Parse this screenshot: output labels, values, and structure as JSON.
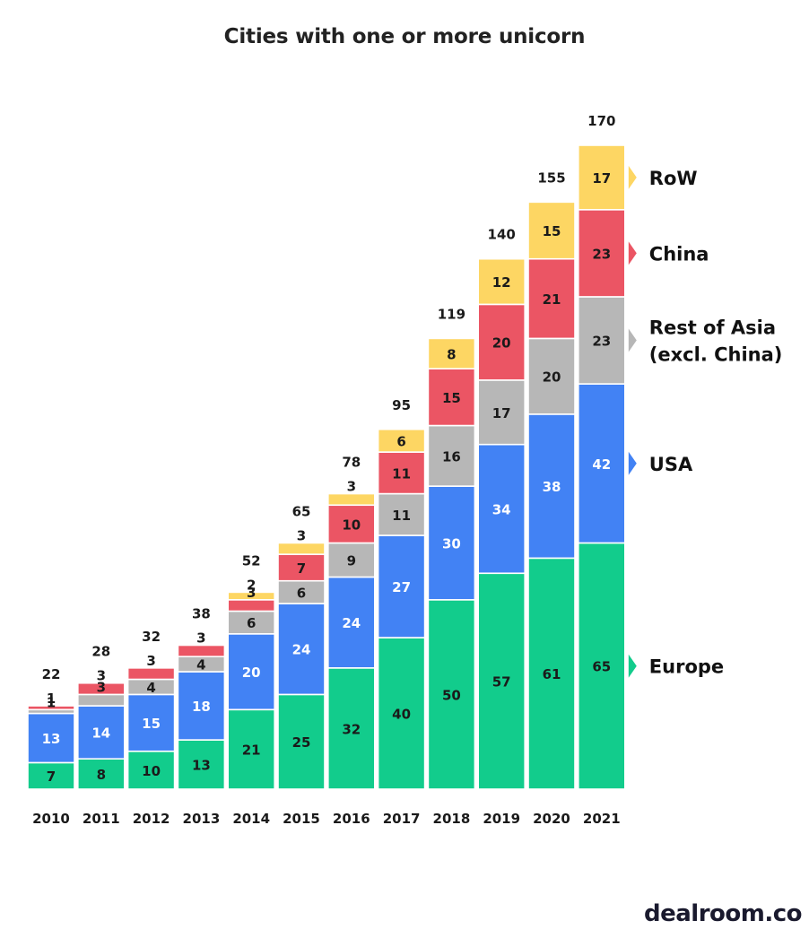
{
  "title": "Cities with one or more unicorn",
  "brand": "dealroom.co",
  "chart_data": {
    "type": "bar",
    "stacked": true,
    "title": "Cities with one or more unicorn",
    "categories": [
      "2010",
      "2011",
      "2012",
      "2013",
      "2014",
      "2015",
      "2016",
      "2017",
      "2018",
      "2019",
      "2020",
      "2021"
    ],
    "totals": [
      22,
      28,
      32,
      38,
      52,
      65,
      78,
      95,
      119,
      140,
      155,
      170
    ],
    "series": [
      {
        "name": "Europe",
        "color": "#12CC8C",
        "label_color": "#1a1a1a",
        "values": [
          7,
          8,
          10,
          13,
          21,
          25,
          32,
          40,
          50,
          57,
          61,
          65
        ]
      },
      {
        "name": "USA",
        "color": "#4282F4",
        "label_color": "#ffffff",
        "values": [
          13,
          14,
          15,
          18,
          20,
          24,
          24,
          27,
          30,
          34,
          38,
          42
        ]
      },
      {
        "name": "Rest of Asia\n(excl. China)",
        "color": "#B7B7B7",
        "label_color": "#1a1a1a",
        "values": [
          1,
          3,
          4,
          4,
          6,
          6,
          9,
          11,
          16,
          17,
          20,
          23
        ]
      },
      {
        "name": "China",
        "color": "#EB5564",
        "label_color": "#1a1a1a",
        "values": [
          1,
          3,
          3,
          3,
          3,
          7,
          10,
          11,
          15,
          20,
          21,
          23
        ]
      },
      {
        "name": "RoW",
        "color": "#FDD663",
        "label_color": "#1a1a1a",
        "values": [
          0,
          0,
          0,
          0,
          2,
          3,
          3,
          6,
          8,
          12,
          15,
          17
        ]
      }
    ],
    "legend_placement": "right",
    "grid": false,
    "ylim": [
      0,
      170
    ]
  }
}
